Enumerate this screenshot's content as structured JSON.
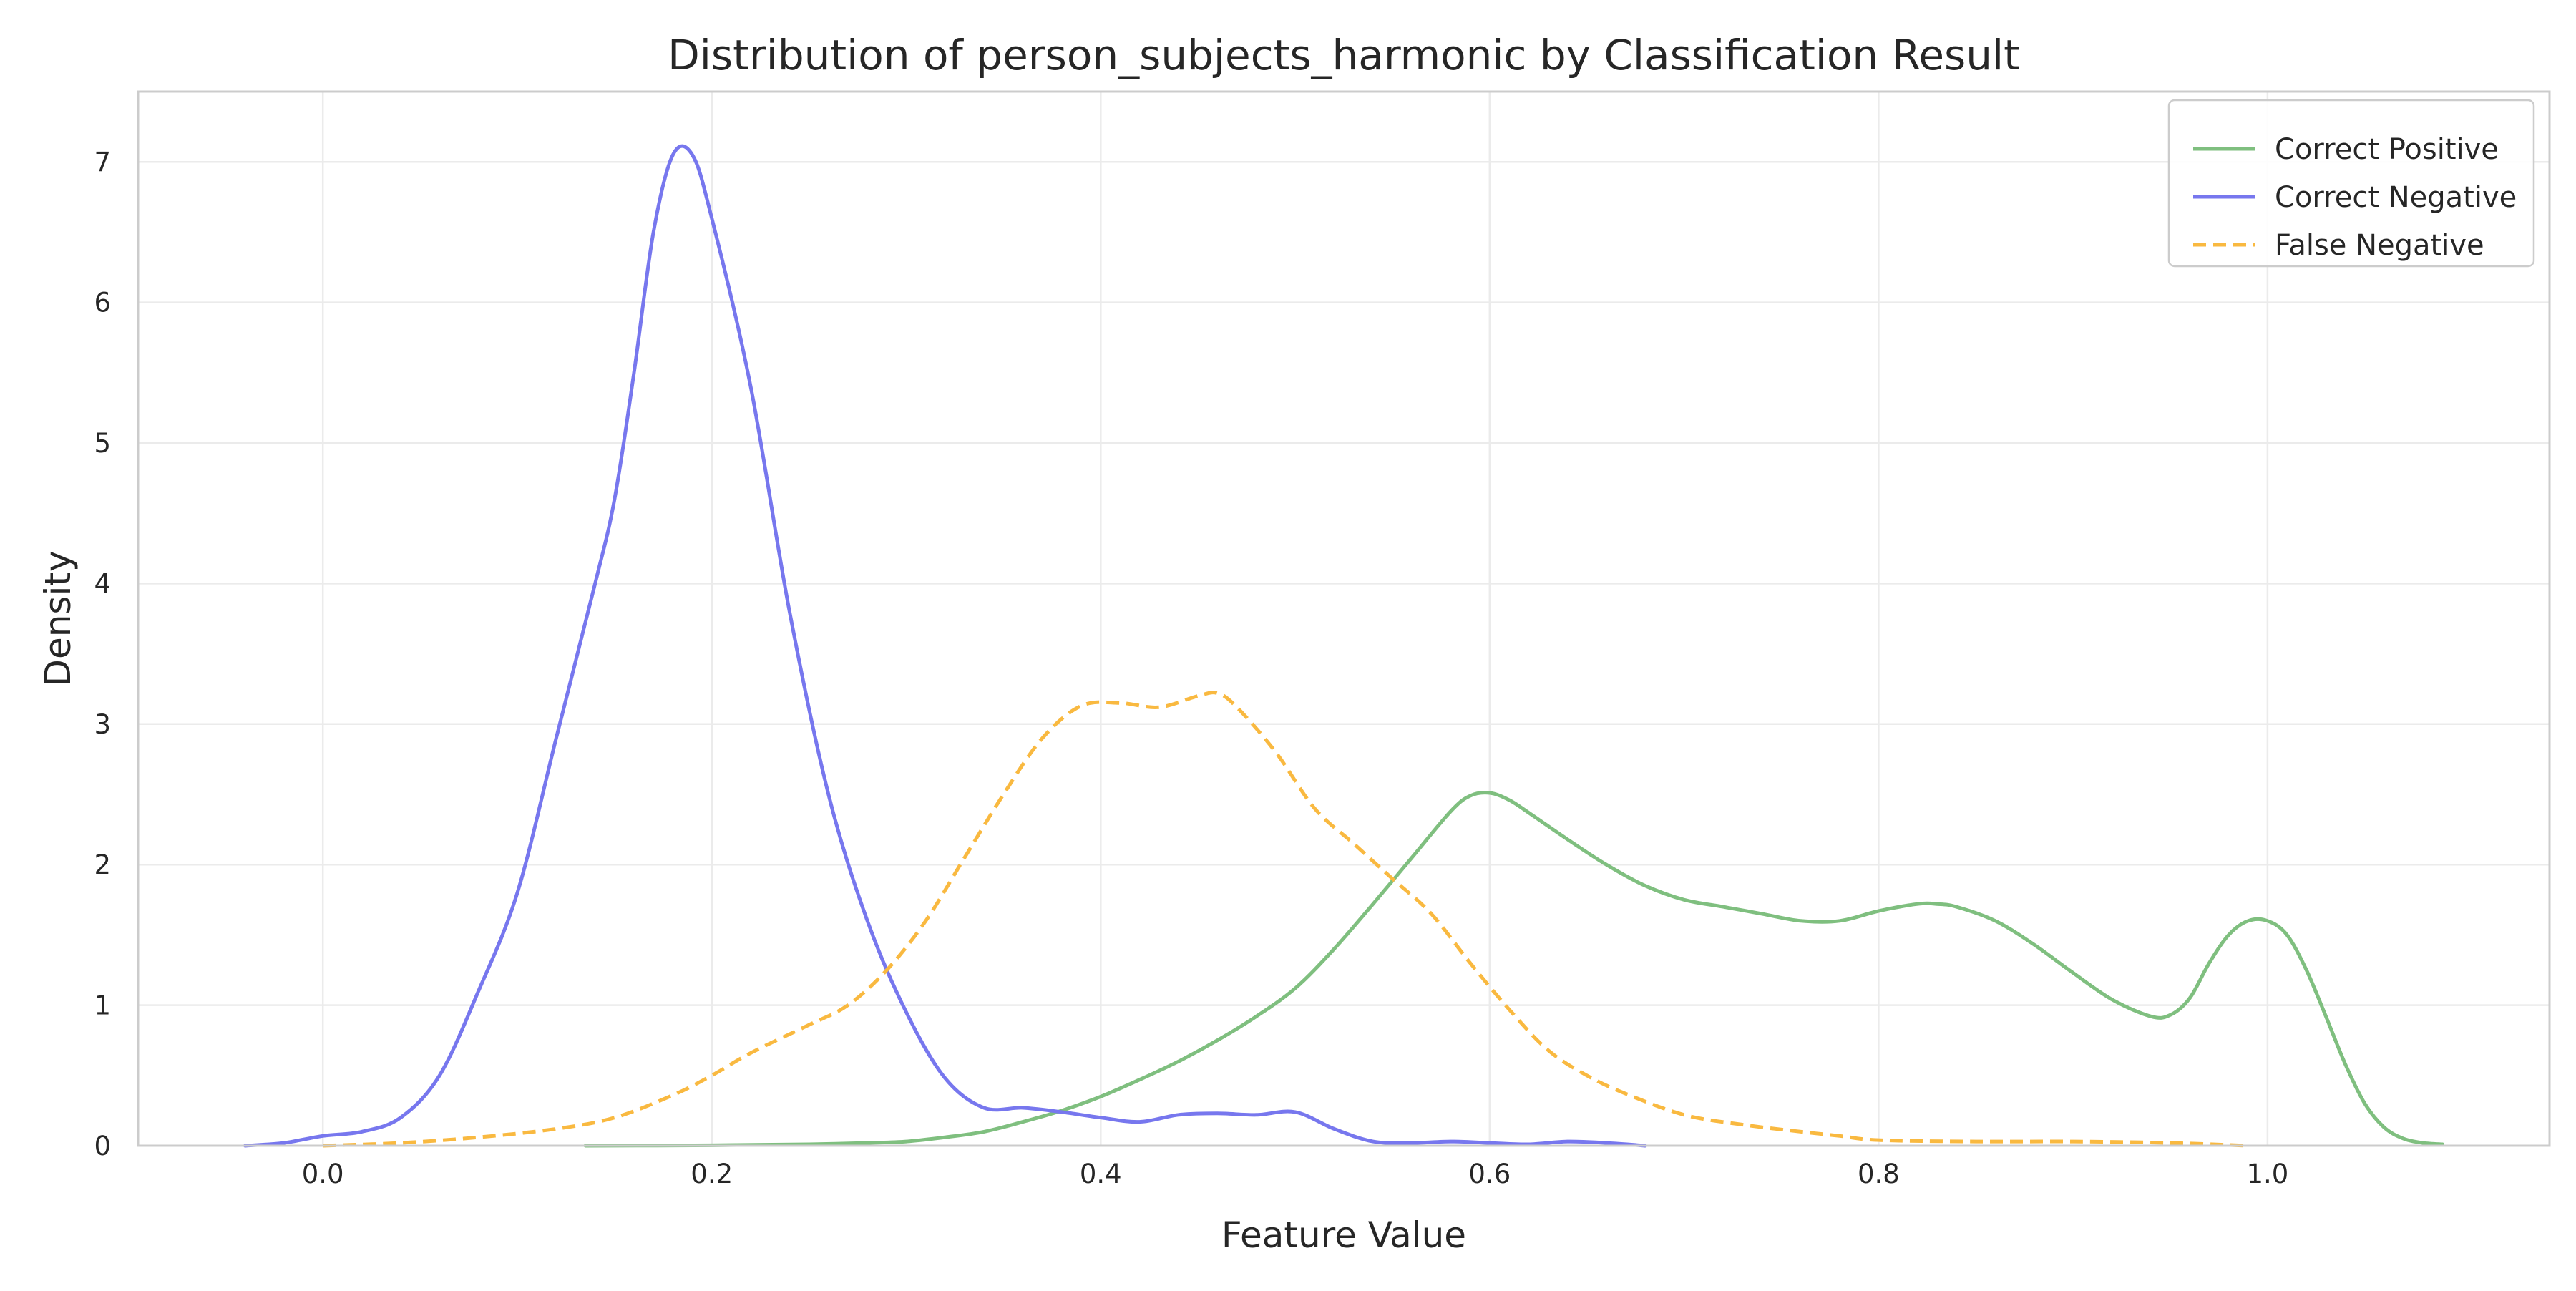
{
  "chart_data": {
    "type": "line",
    "title": "Distribution of person_subjects_harmonic by Classification Result",
    "xlabel": "Feature Value",
    "ylabel": "Density",
    "xlim": [
      -0.095,
      1.145
    ],
    "ylim": [
      0,
      7.5
    ],
    "x_ticks": [
      0.0,
      0.2,
      0.4,
      0.6,
      0.8,
      1.0
    ],
    "x_tick_labels": [
      "0.0",
      "0.2",
      "0.4",
      "0.6",
      "0.8",
      "1.0"
    ],
    "y_ticks": [
      0,
      1,
      2,
      3,
      4,
      5,
      6,
      7
    ],
    "y_tick_labels": [
      "0",
      "1",
      "2",
      "3",
      "4",
      "5",
      "6",
      "7"
    ],
    "grid": true,
    "legend_position": "top-right",
    "series": [
      {
        "name": "Correct Positive",
        "color": "#7fbf7f",
        "style": "solid",
        "points": [
          [
            0.135,
            0.0
          ],
          [
            0.2,
            0.003
          ],
          [
            0.25,
            0.01
          ],
          [
            0.28,
            0.02
          ],
          [
            0.3,
            0.03
          ],
          [
            0.32,
            0.06
          ],
          [
            0.34,
            0.1
          ],
          [
            0.36,
            0.17
          ],
          [
            0.38,
            0.25
          ],
          [
            0.4,
            0.35
          ],
          [
            0.42,
            0.47
          ],
          [
            0.44,
            0.6
          ],
          [
            0.46,
            0.75
          ],
          [
            0.48,
            0.92
          ],
          [
            0.5,
            1.12
          ],
          [
            0.52,
            1.4
          ],
          [
            0.54,
            1.72
          ],
          [
            0.56,
            2.05
          ],
          [
            0.58,
            2.38
          ],
          [
            0.59,
            2.49
          ],
          [
            0.6,
            2.51
          ],
          [
            0.61,
            2.46
          ],
          [
            0.62,
            2.37
          ],
          [
            0.64,
            2.18
          ],
          [
            0.66,
            2.0
          ],
          [
            0.68,
            1.85
          ],
          [
            0.7,
            1.75
          ],
          [
            0.72,
            1.7
          ],
          [
            0.74,
            1.65
          ],
          [
            0.76,
            1.6
          ],
          [
            0.78,
            1.6
          ],
          [
            0.8,
            1.67
          ],
          [
            0.82,
            1.72
          ],
          [
            0.83,
            1.72
          ],
          [
            0.84,
            1.7
          ],
          [
            0.86,
            1.6
          ],
          [
            0.88,
            1.43
          ],
          [
            0.9,
            1.23
          ],
          [
            0.92,
            1.04
          ],
          [
            0.94,
            0.92
          ],
          [
            0.95,
            0.93
          ],
          [
            0.96,
            1.05
          ],
          [
            0.97,
            1.3
          ],
          [
            0.98,
            1.5
          ],
          [
            0.99,
            1.6
          ],
          [
            1.0,
            1.6
          ],
          [
            1.01,
            1.5
          ],
          [
            1.02,
            1.25
          ],
          [
            1.03,
            0.92
          ],
          [
            1.04,
            0.58
          ],
          [
            1.05,
            0.3
          ],
          [
            1.06,
            0.13
          ],
          [
            1.07,
            0.05
          ],
          [
            1.08,
            0.02
          ],
          [
            1.09,
            0.01
          ]
        ]
      },
      {
        "name": "Correct Negative",
        "color": "#7777ee",
        "style": "solid",
        "points": [
          [
            -0.04,
            0.0
          ],
          [
            -0.02,
            0.02
          ],
          [
            0.0,
            0.07
          ],
          [
            0.02,
            0.1
          ],
          [
            0.04,
            0.2
          ],
          [
            0.06,
            0.5
          ],
          [
            0.08,
            1.1
          ],
          [
            0.1,
            1.8
          ],
          [
            0.12,
            2.9
          ],
          [
            0.14,
            4.0
          ],
          [
            0.15,
            4.6
          ],
          [
            0.16,
            5.5
          ],
          [
            0.17,
            6.5
          ],
          [
            0.18,
            7.05
          ],
          [
            0.19,
            7.05
          ],
          [
            0.2,
            6.6
          ],
          [
            0.22,
            5.4
          ],
          [
            0.24,
            3.8
          ],
          [
            0.26,
            2.5
          ],
          [
            0.28,
            1.6
          ],
          [
            0.3,
            0.95
          ],
          [
            0.32,
            0.48
          ],
          [
            0.34,
            0.27
          ],
          [
            0.36,
            0.27
          ],
          [
            0.38,
            0.24
          ],
          [
            0.4,
            0.2
          ],
          [
            0.42,
            0.17
          ],
          [
            0.44,
            0.22
          ],
          [
            0.46,
            0.23
          ],
          [
            0.48,
            0.22
          ],
          [
            0.5,
            0.24
          ],
          [
            0.52,
            0.12
          ],
          [
            0.54,
            0.03
          ],
          [
            0.56,
            0.02
          ],
          [
            0.58,
            0.03
          ],
          [
            0.6,
            0.02
          ],
          [
            0.62,
            0.01
          ],
          [
            0.64,
            0.03
          ],
          [
            0.66,
            0.02
          ],
          [
            0.68,
            0.0
          ]
        ]
      },
      {
        "name": "False Negative",
        "color": "#f9b940",
        "style": "dashed",
        "points": [
          [
            0.0,
            0.0
          ],
          [
            0.04,
            0.02
          ],
          [
            0.08,
            0.06
          ],
          [
            0.12,
            0.12
          ],
          [
            0.15,
            0.2
          ],
          [
            0.18,
            0.36
          ],
          [
            0.2,
            0.5
          ],
          [
            0.22,
            0.66
          ],
          [
            0.25,
            0.86
          ],
          [
            0.27,
            1.0
          ],
          [
            0.29,
            1.25
          ],
          [
            0.31,
            1.6
          ],
          [
            0.33,
            2.05
          ],
          [
            0.35,
            2.5
          ],
          [
            0.37,
            2.9
          ],
          [
            0.39,
            3.13
          ],
          [
            0.41,
            3.15
          ],
          [
            0.43,
            3.12
          ],
          [
            0.45,
            3.2
          ],
          [
            0.46,
            3.22
          ],
          [
            0.47,
            3.12
          ],
          [
            0.49,
            2.8
          ],
          [
            0.51,
            2.4
          ],
          [
            0.53,
            2.15
          ],
          [
            0.55,
            1.9
          ],
          [
            0.57,
            1.65
          ],
          [
            0.59,
            1.3
          ],
          [
            0.61,
            0.97
          ],
          [
            0.63,
            0.68
          ],
          [
            0.65,
            0.5
          ],
          [
            0.67,
            0.37
          ],
          [
            0.7,
            0.22
          ],
          [
            0.73,
            0.15
          ],
          [
            0.76,
            0.1
          ],
          [
            0.78,
            0.07
          ],
          [
            0.8,
            0.04
          ],
          [
            0.85,
            0.03
          ],
          [
            0.9,
            0.03
          ],
          [
            0.95,
            0.02
          ],
          [
            0.99,
            0.0
          ]
        ]
      }
    ]
  }
}
